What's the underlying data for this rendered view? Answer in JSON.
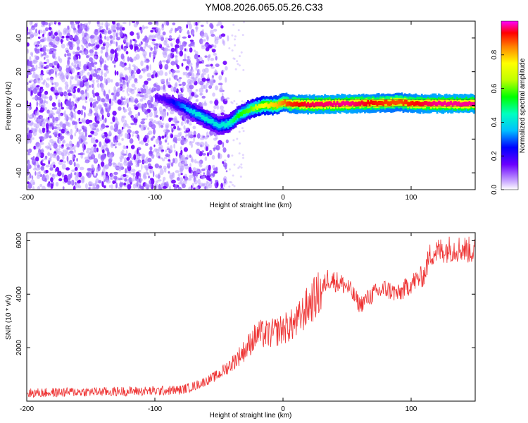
{
  "title": "YM08.2026.065.05.26.C33",
  "chart_data": [
    {
      "type": "heatmap",
      "xlabel": "Height of straight line (km)",
      "ylabel": "Frequency (Hz)",
      "xlim": [
        -200,
        150
      ],
      "ylim": [
        -50,
        50
      ],
      "xticks": [
        -200,
        -100,
        0,
        100
      ],
      "yticks": [
        -40,
        -20,
        0,
        20,
        40
      ],
      "colorbar": {
        "label": "Normalized spectral amplitude",
        "range": [
          0,
          1
        ],
        "ticks": [
          "0.0",
          "0.2",
          "0.4",
          "0.6",
          "0.8"
        ],
        "tick_values": [
          0.0,
          0.2,
          0.4,
          0.6,
          0.8
        ]
      },
      "noise_region": {
        "x_from": -200,
        "x_to": -42,
        "freq_from": -50,
        "freq_to": 50,
        "amplitude": 0.08
      },
      "ridge": [
        {
          "x": -100,
          "freq": 5,
          "amp": 0.15
        },
        {
          "x": -90,
          "freq": 3,
          "amp": 0.2
        },
        {
          "x": -80,
          "freq": 0,
          "amp": 0.3
        },
        {
          "x": -70,
          "freq": -4,
          "amp": 0.4
        },
        {
          "x": -60,
          "freq": -8,
          "amp": 0.42
        },
        {
          "x": -50,
          "freq": -12,
          "amp": 0.4
        },
        {
          "x": -42,
          "freq": -11,
          "amp": 0.45
        },
        {
          "x": -35,
          "freq": -6,
          "amp": 0.55
        },
        {
          "x": -25,
          "freq": -2,
          "amp": 0.6
        },
        {
          "x": -15,
          "freq": 0,
          "amp": 0.75
        },
        {
          "x": -5,
          "freq": 0,
          "amp": 0.8
        },
        {
          "x": 0,
          "freq": 2,
          "amp": 0.85
        },
        {
          "x": 5,
          "freq": 1,
          "amp": 0.9
        },
        {
          "x": 20,
          "freq": 0.5,
          "amp": 0.95
        },
        {
          "x": 50,
          "freq": 1,
          "amp": 0.97
        },
        {
          "x": 80,
          "freq": 1.5,
          "amp": 0.9
        },
        {
          "x": 90,
          "freq": 2,
          "amp": 0.88
        },
        {
          "x": 100,
          "freq": 1,
          "amp": 0.92
        },
        {
          "x": 120,
          "freq": 1,
          "amp": 0.97
        },
        {
          "x": 150,
          "freq": 1,
          "amp": 0.97
        }
      ]
    },
    {
      "type": "line",
      "xlabel": "Height of straight line (km)",
      "ylabel": "SNR (10 * v/v)",
      "xlim": [
        -200,
        150
      ],
      "ylim": [
        0,
        6300
      ],
      "xticks": [
        -200,
        -100,
        0,
        100
      ],
      "yticks": [
        2000,
        4000,
        6000
      ],
      "color": "#ee3333",
      "series": [
        {
          "name": "SNR",
          "x": [
            -200,
            -180,
            -160,
            -140,
            -120,
            -100,
            -80,
            -70,
            -60,
            -50,
            -40,
            -30,
            -20,
            -10,
            0,
            10,
            20,
            30,
            35,
            40,
            50,
            60,
            70,
            80,
            90,
            100,
            110,
            115,
            120,
            130,
            140,
            150
          ],
          "y": [
            300,
            320,
            350,
            350,
            370,
            380,
            420,
            550,
            750,
            1000,
            1400,
            1900,
            2500,
            2500,
            2700,
            2900,
            3600,
            4100,
            4600,
            4500,
            4300,
            3600,
            4000,
            4200,
            4000,
            4400,
            4700,
            5500,
            5600,
            5700,
            5700,
            5600
          ]
        }
      ]
    }
  ]
}
